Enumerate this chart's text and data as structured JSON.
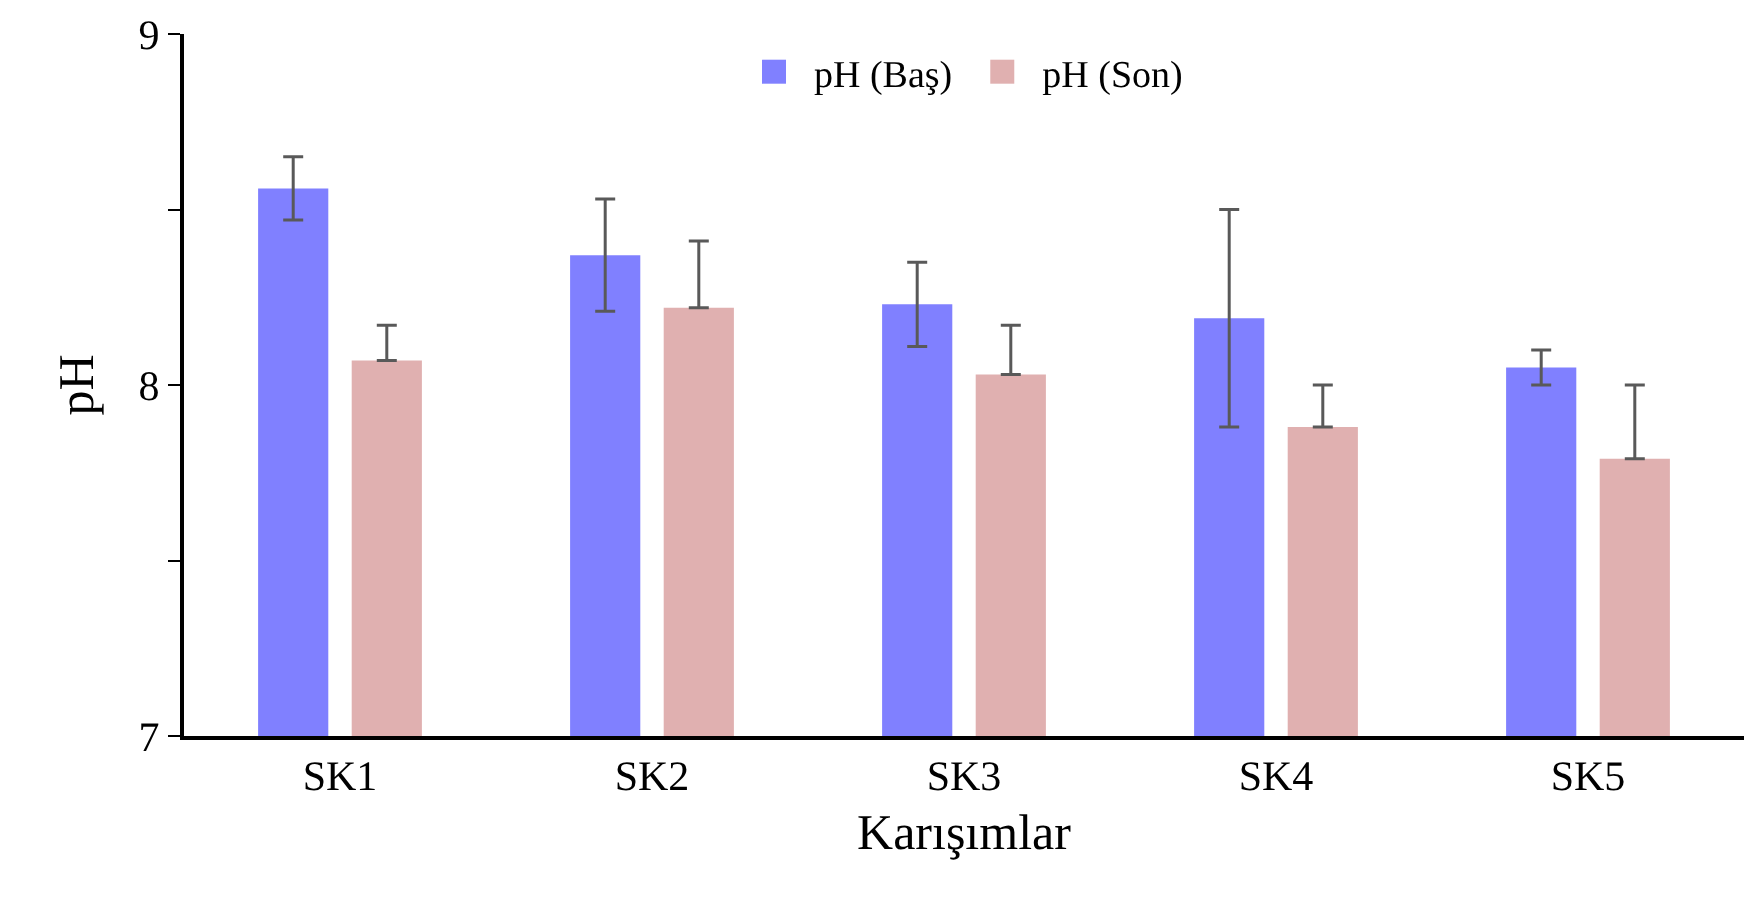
{
  "chart_data": {
    "type": "bar",
    "xlabel": "Karışımlar",
    "ylabel": "pH",
    "categories": [
      "SK1",
      "SK2",
      "SK3",
      "SK4",
      "SK5"
    ],
    "series": [
      {
        "name": "pH (Baş)",
        "color": "#8080ff",
        "values": [
          8.56,
          8.37,
          8.23,
          8.19,
          8.05
        ],
        "errors": [
          [
            8.47,
            8.65
          ],
          [
            8.21,
            8.53
          ],
          [
            8.11,
            8.35
          ],
          [
            7.88,
            8.5
          ],
          [
            8.0,
            8.1
          ]
        ]
      },
      {
        "name": "pH (Son)",
        "color": "#e0b0b0",
        "values": [
          8.07,
          8.22,
          8.03,
          7.88,
          7.79
        ],
        "errors": [
          [
            8.07,
            8.17
          ],
          [
            8.22,
            8.41
          ],
          [
            8.03,
            8.17
          ],
          [
            7.88,
            8.0
          ],
          [
            7.79,
            8.0
          ]
        ]
      }
    ],
    "ylim": [
      7,
      9
    ],
    "yticks": [
      7,
      {
        "value": 7.5,
        "label": null
      },
      8,
      {
        "value": 8.5,
        "label": null
      },
      9
    ],
    "legend": "top"
  }
}
